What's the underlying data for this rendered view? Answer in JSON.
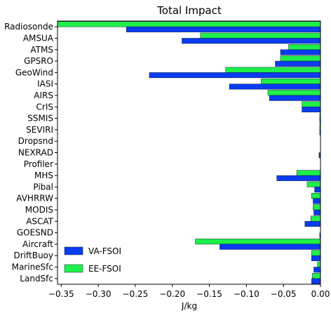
{
  "chart_data": {
    "type": "bar",
    "orientation": "horizontal",
    "title": "Total Impact",
    "xlabel": "J/kg",
    "ylabel": "",
    "xlim": [
      -0.355,
      0.0
    ],
    "xticks": [
      -0.35,
      -0.3,
      -0.25,
      -0.2,
      -0.15,
      -0.1,
      -0.05,
      0.0
    ],
    "xtick_labels": [
      "−0.35",
      "−0.30",
      "−0.25",
      "−0.20",
      "−0.15",
      "−0.10",
      "−0.05",
      "0.00"
    ],
    "grid": false,
    "legend_position": "bottom-left",
    "categories": [
      "Radiosonde",
      "AMSUA",
      "ATMS",
      "GPSRO",
      "GeoWind",
      "IASI",
      "AIRS",
      "CrIS",
      "SSMIS",
      "SEVIRI",
      "Dropsnd",
      "NEXRAD",
      "Profiler",
      "MHS",
      "Pibal",
      "AVHRRW",
      "MODIS",
      "ASCAT",
      "GOESND",
      "Aircraft",
      "DriftBuoy",
      "MarineSfc",
      "LandSfc"
    ],
    "series": [
      {
        "name": "VA-FSOI",
        "color": "#0a3cf0",
        "values": [
          -0.262,
          -0.187,
          -0.054,
          -0.061,
          -0.231,
          -0.123,
          -0.069,
          -0.025,
          -0.001,
          -0.001,
          0.0,
          -0.002,
          0.0,
          -0.059,
          -0.008,
          -0.01,
          -0.009,
          -0.021,
          -0.001,
          -0.136,
          -0.012,
          -0.009,
          -0.012
        ]
      },
      {
        "name": "EE-FSOI",
        "color": "#1ef04a",
        "values": [
          -0.355,
          -0.162,
          -0.043,
          -0.054,
          -0.128,
          -0.08,
          -0.071,
          -0.025,
          -0.001,
          -0.001,
          0.0,
          0.0,
          0.0,
          -0.032,
          -0.018,
          -0.012,
          -0.01,
          -0.013,
          0.0,
          -0.169,
          -0.012,
          -0.004,
          -0.011
        ]
      }
    ]
  }
}
